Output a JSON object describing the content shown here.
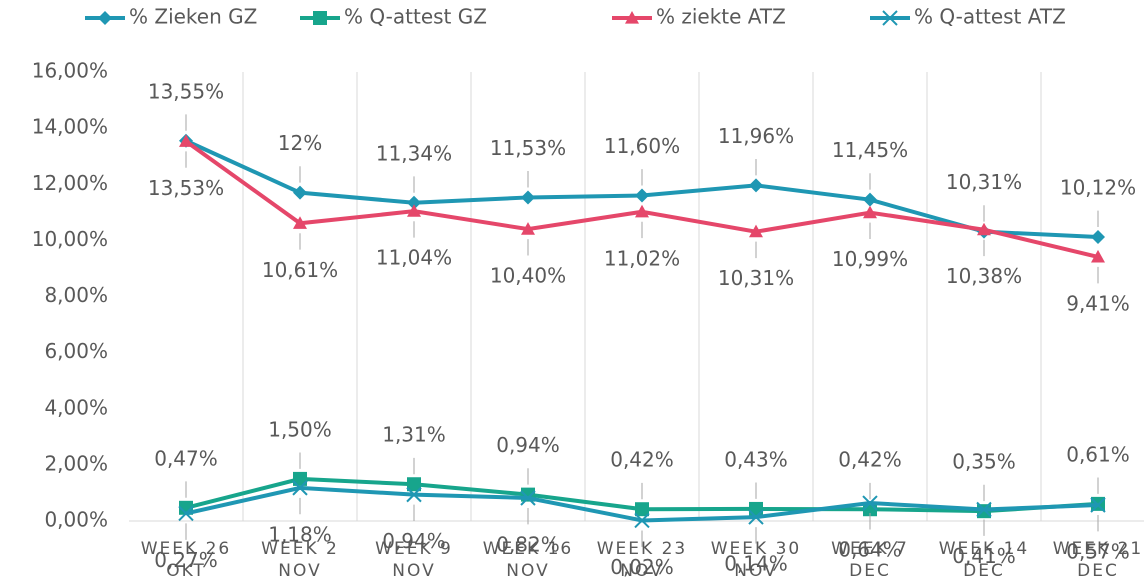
{
  "chart_data": {
    "type": "line",
    "categories": [
      "WEEK 26 OKT",
      "WEEK 2 NOV",
      "WEEK 9 NOV",
      "WEEK 16 NOV",
      "WEEK 23 NOV",
      "WEEK 30 NOV",
      "WEEK 7 DEC",
      "WEEK 14 DEC",
      "WEEK 21 DEC"
    ],
    "series": [
      {
        "name": "% Zieken GZ",
        "color": "#1f97b3",
        "marker": "diamond",
        "values": [
          13.55,
          11.7,
          11.34,
          11.53,
          11.6,
          11.96,
          11.45,
          10.31,
          10.12
        ],
        "value_labels": [
          "13,55%",
          "12%",
          "11,34%",
          "11,53%",
          "11,60%",
          "11,96%",
          "11,45%",
          "10,31%",
          "10,12%"
        ]
      },
      {
        "name": "% Q-attest GZ",
        "color": "#17a58c",
        "marker": "square",
        "values": [
          0.47,
          1.5,
          1.31,
          0.94,
          0.42,
          0.43,
          0.42,
          0.35,
          0.61
        ],
        "value_labels": [
          "0,47%",
          "1,50%",
          "1,31%",
          "0,94%",
          "0,42%",
          "0,43%",
          "0,42%",
          "0,35%",
          "0,61%"
        ]
      },
      {
        "name": "% ziekte ATZ",
        "color": "#e5476a",
        "marker": "triangle",
        "values": [
          13.53,
          10.61,
          11.04,
          10.4,
          11.02,
          10.31,
          10.99,
          10.38,
          9.41
        ],
        "value_labels": [
          "13,53%",
          "10,61%",
          "11,04%",
          "10,40%",
          "11,02%",
          "10,31%",
          "10,99%",
          "10,38%",
          "9,41%"
        ]
      },
      {
        "name": "% Q-attest ATZ",
        "color": "#1f97b3",
        "marker": "x",
        "values": [
          0.27,
          1.18,
          0.94,
          0.82,
          0.02,
          0.14,
          0.64,
          0.41,
          0.57
        ],
        "value_labels": [
          "0,27%",
          "1,18%",
          "0,94%",
          "0,82%",
          "0,02%",
          "0,14%",
          "0,64%",
          "0,41%",
          "0,57%"
        ]
      }
    ],
    "ylim": [
      0,
      16
    ],
    "yticks": [
      {
        "value": 0,
        "label": "0,00%"
      },
      {
        "value": 2,
        "label": "2,00%"
      },
      {
        "value": 4,
        "label": "4,00%"
      },
      {
        "value": 6,
        "label": "6,00%"
      },
      {
        "value": 8,
        "label": "8,00%"
      },
      {
        "value": 10,
        "label": "10,00%"
      },
      {
        "value": 12,
        "label": "12,00%"
      },
      {
        "value": 14,
        "label": "14,00%"
      },
      {
        "value": 16,
        "label": "16,00%"
      }
    ],
    "legend": "top"
  }
}
